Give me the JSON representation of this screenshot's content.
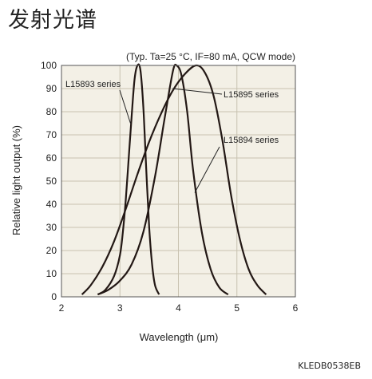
{
  "page": {
    "title": "发射光谱",
    "figure_code": "KLEDB0538EB"
  },
  "chart_data": {
    "type": "line",
    "conditions": "(Typ. Ta=25 °C, IF=80 mA, QCW mode)",
    "xlabel": "Wavelength (μm)",
    "ylabel": "Relative light output (%)",
    "xlim": [
      2,
      6
    ],
    "ylim": [
      0,
      100
    ],
    "x_ticks": [
      2,
      3,
      4,
      5,
      6
    ],
    "y_ticks": [
      0,
      10,
      20,
      30,
      40,
      50,
      60,
      70,
      80,
      90,
      100
    ],
    "grid": true,
    "background": "#f3f0e6",
    "line_color": "#231815",
    "series": [
      {
        "name": "L15893 series",
        "points": [
          [
            2.62,
            1
          ],
          [
            2.75,
            3
          ],
          [
            2.9,
            9
          ],
          [
            3.0,
            18
          ],
          [
            3.05,
            28
          ],
          [
            3.1,
            42
          ],
          [
            3.15,
            60
          ],
          [
            3.2,
            78
          ],
          [
            3.25,
            94
          ],
          [
            3.3,
            100
          ],
          [
            3.35,
            98
          ],
          [
            3.4,
            82
          ],
          [
            3.45,
            55
          ],
          [
            3.5,
            30
          ],
          [
            3.55,
            14
          ],
          [
            3.6,
            5
          ],
          [
            3.67,
            1
          ]
        ]
      },
      {
        "name": "L15894 series",
        "points": [
          [
            2.62,
            1
          ],
          [
            2.8,
            3
          ],
          [
            3.0,
            7
          ],
          [
            3.2,
            14
          ],
          [
            3.4,
            28
          ],
          [
            3.6,
            52
          ],
          [
            3.75,
            75
          ],
          [
            3.85,
            90
          ],
          [
            3.92,
            99
          ],
          [
            3.97,
            100
          ],
          [
            4.05,
            96
          ],
          [
            4.15,
            80
          ],
          [
            4.25,
            55
          ],
          [
            4.4,
            28
          ],
          [
            4.55,
            12
          ],
          [
            4.7,
            4
          ],
          [
            4.85,
            1
          ]
        ]
      },
      {
        "name": "L15895 series",
        "points": [
          [
            2.35,
            1
          ],
          [
            2.5,
            5
          ],
          [
            2.7,
            13
          ],
          [
            2.9,
            24
          ],
          [
            3.1,
            38
          ],
          [
            3.3,
            53
          ],
          [
            3.5,
            67
          ],
          [
            3.7,
            79
          ],
          [
            3.9,
            89
          ],
          [
            4.1,
            96
          ],
          [
            4.3,
            100
          ],
          [
            4.45,
            97
          ],
          [
            4.6,
            87
          ],
          [
            4.75,
            68
          ],
          [
            4.9,
            44
          ],
          [
            5.05,
            25
          ],
          [
            5.2,
            12
          ],
          [
            5.35,
            5
          ],
          [
            5.5,
            1
          ]
        ]
      }
    ],
    "annotations": [
      {
        "text": "L15893 series",
        "target_series": "L15893 series"
      },
      {
        "text": "L15895 series",
        "target_series": "L15895 series"
      },
      {
        "text": "L15894 series",
        "target_series": "L15894 series"
      }
    ]
  }
}
